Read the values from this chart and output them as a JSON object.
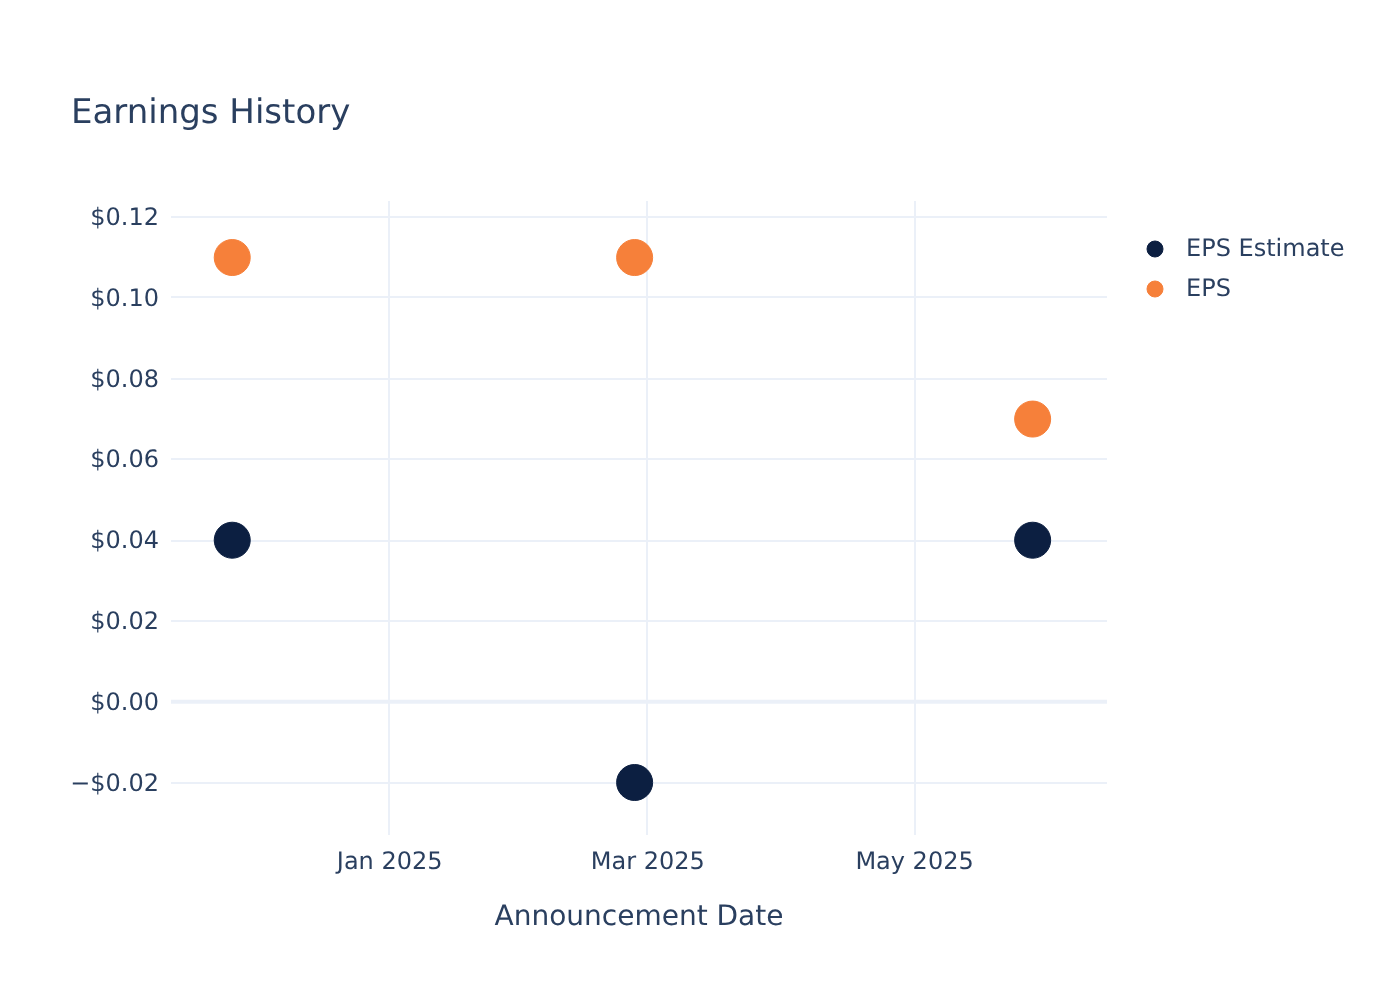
{
  "chart_data": {
    "type": "scatter",
    "title": "Earnings History",
    "xlabel": "Announcement Date",
    "x": [
      "2024-11-26",
      "2025-02-26",
      "2025-05-28"
    ],
    "series": [
      {
        "name": "EPS Estimate",
        "color": "#0c1f41",
        "values": [
          0.04,
          -0.02,
          0.04
        ]
      },
      {
        "name": "EPS",
        "color": "#f6803a",
        "values": [
          0.11,
          0.11,
          0.07
        ]
      }
    ],
    "xlim": [
      "2024-11-12",
      "2025-06-14"
    ],
    "xticks": [
      {
        "value": "2025-01-01",
        "label": "Jan 2025"
      },
      {
        "value": "2025-03-01",
        "label": "Mar 2025"
      },
      {
        "value": "2025-05-01",
        "label": "May 2025"
      }
    ],
    "ylim": [
      -0.033,
      0.124
    ],
    "yticks": [
      {
        "value": -0.02,
        "label": "−$0.02"
      },
      {
        "value": 0,
        "label": "$0.00"
      },
      {
        "value": 0.02,
        "label": "$0.02"
      },
      {
        "value": 0.04,
        "label": "$0.04"
      },
      {
        "value": 0.06,
        "label": "$0.06"
      },
      {
        "value": 0.08,
        "label": "$0.08"
      },
      {
        "value": 0.1,
        "label": "$0.10"
      },
      {
        "value": 0.12,
        "label": "$0.12"
      }
    ],
    "ref_lines": [
      {
        "axis": "y",
        "value": 0,
        "color": "#ebf0f8"
      }
    ],
    "grid": true,
    "legend": "top right",
    "marker": "circle"
  }
}
